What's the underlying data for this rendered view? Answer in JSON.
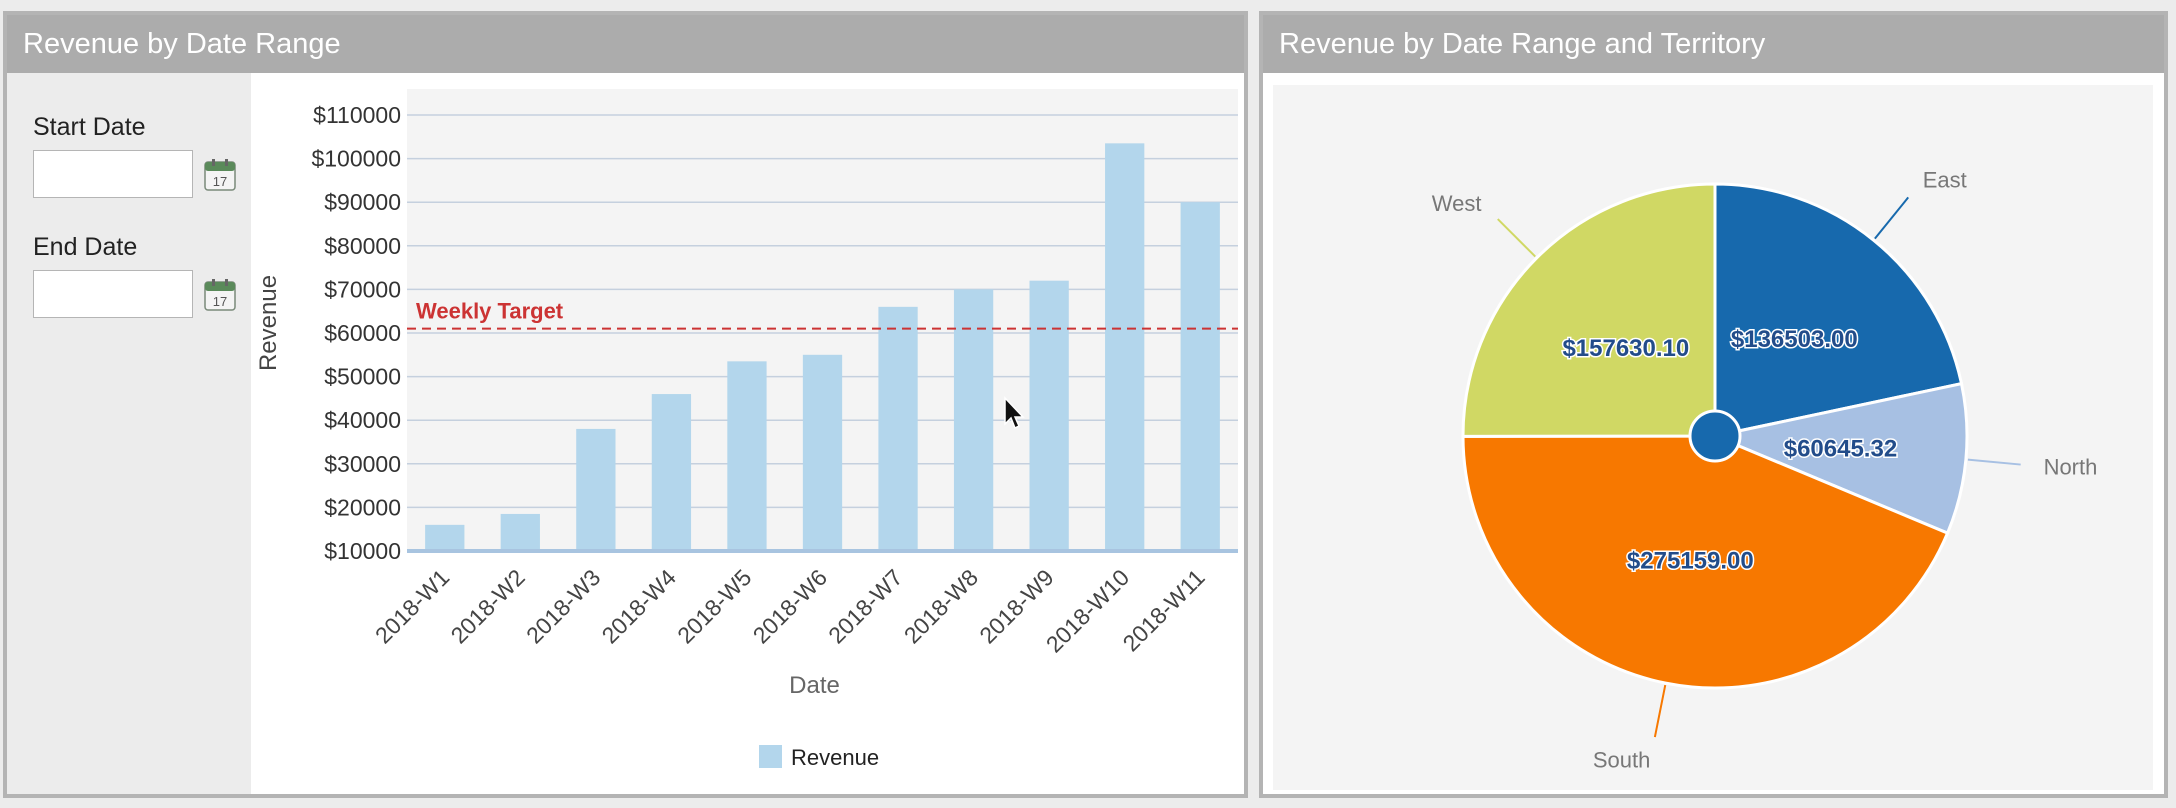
{
  "left_panel": {
    "title": "Revenue by Date Range",
    "start_date": {
      "label": "Start Date",
      "value": "",
      "calendar_day": "17"
    },
    "end_date": {
      "label": "End Date",
      "value": "",
      "calendar_day": "17"
    }
  },
  "right_panel": {
    "title": "Revenue by Date Range and Territory"
  },
  "chart_data": [
    {
      "type": "bar",
      "xlabel": "Date",
      "ylabel": "Revenue",
      "categories": [
        "2018-W1",
        "2018-W2",
        "2018-W3",
        "2018-W4",
        "2018-W5",
        "2018-W6",
        "2018-W7",
        "2018-W8",
        "2018-W9",
        "2018-W10",
        "2018-W11"
      ],
      "series": [
        {
          "name": "Revenue",
          "values": [
            16000,
            18500,
            38000,
            46000,
            53500,
            55000,
            66000,
            70000,
            72000,
            103500,
            90000
          ]
        }
      ],
      "ylim": [
        10000,
        110000
      ],
      "yticks": [
        10000,
        20000,
        30000,
        40000,
        50000,
        60000,
        70000,
        80000,
        90000,
        100000,
        110000
      ],
      "ytick_labels": [
        "$10000",
        "$20000",
        "$30000",
        "$40000",
        "$50000",
        "$60000",
        "$70000",
        "$80000",
        "$90000",
        "$100000",
        "$110000"
      ],
      "grid": true,
      "legend": "bottom",
      "target": {
        "label": "Weekly Target",
        "value": 61000
      },
      "colors": {
        "bar": "#b3d6ec",
        "target": "#cc3333",
        "grid": "#c5d0de",
        "axis": "#a8c4e0",
        "plot_bg": "#f4f4f4"
      }
    },
    {
      "type": "pie",
      "slices": [
        {
          "name": "East",
          "value": 136503.0,
          "label": "$136503.00",
          "color": "#1769ad"
        },
        {
          "name": "North",
          "value": 60645.32,
          "label": "$60645.32",
          "color": "#a7c0e3"
        },
        {
          "name": "South",
          "value": 275159.0,
          "label": "$275159.00",
          "color": "#f77800"
        },
        {
          "name": "West",
          "value": 157630.1,
          "label": "$157630.10",
          "color": "#d0d864"
        }
      ],
      "center_color": "#1769ad"
    }
  ]
}
